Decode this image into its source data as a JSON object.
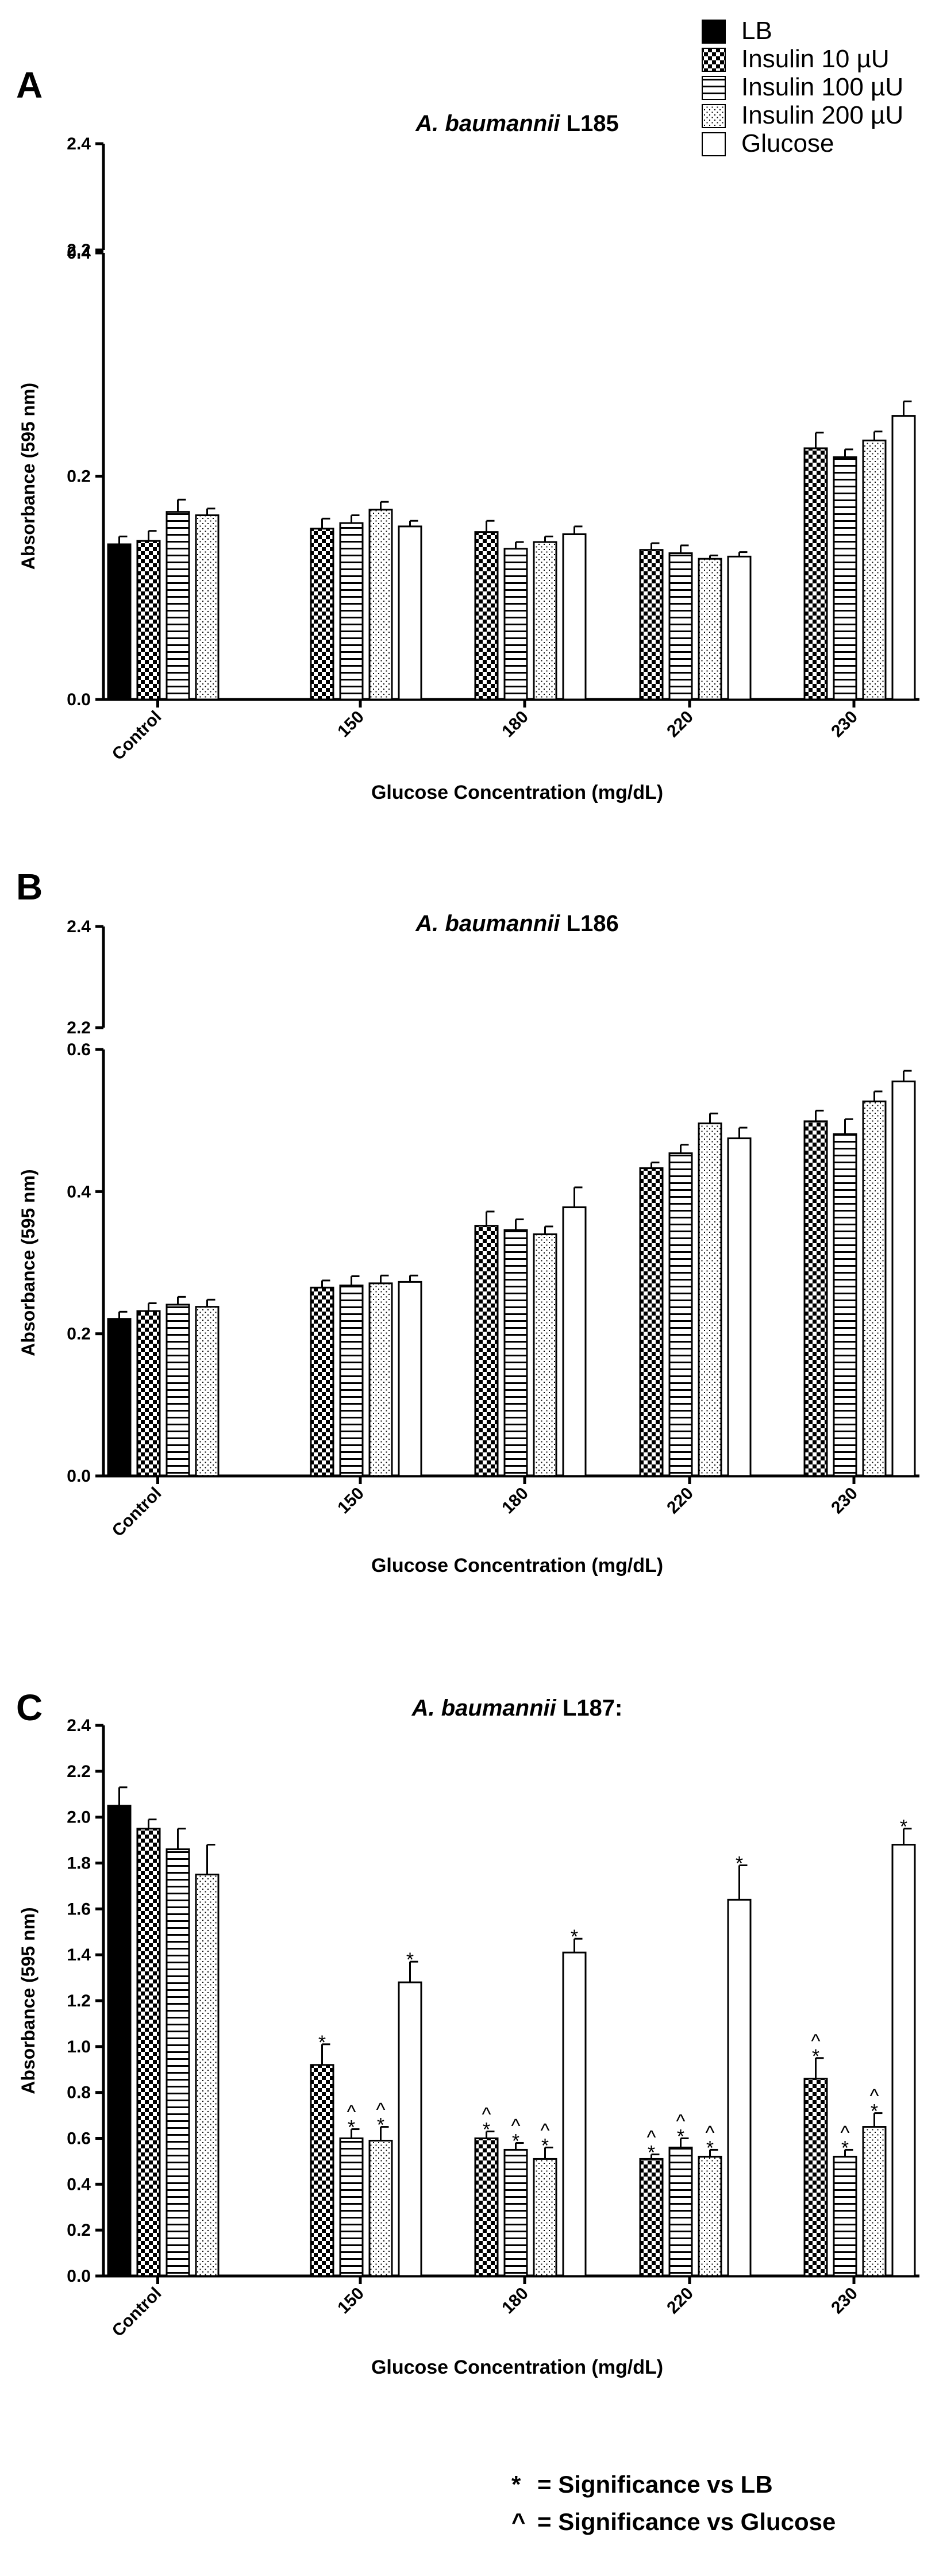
{
  "legend": [
    {
      "name": "LB",
      "pattern": "solid"
    },
    {
      "name": "Insulin 10 µU",
      "pattern": "checker"
    },
    {
      "name": "Insulin 100 µU",
      "pattern": "hlines"
    },
    {
      "name": "Insulin 200 µU",
      "pattern": "dots"
    },
    {
      "name": "Glucose",
      "pattern": "empty"
    }
  ],
  "notes": [
    {
      "symbol": "*",
      "text": "= Significance vs LB"
    },
    {
      "symbol": "^",
      "text": "= Significance vs Glucose"
    }
  ],
  "chart_data": [
    {
      "type": "bar",
      "panel": "A",
      "title_italic": "A. baumannii",
      "title_rest": " L185",
      "xlabel": "Glucose Concentration (mg/dL)",
      "ylabel": "Absorbance (595 nm)",
      "categories": [
        "Control",
        "150",
        "180",
        "220",
        "230"
      ],
      "broken_axis": true,
      "ylim": [
        0,
        0.4
      ],
      "yticks": [
        0.0,
        0.2,
        0.4
      ],
      "ytick_labels": [
        "0.0",
        "0.2",
        "0.4"
      ],
      "upper_ticks": [
        2.2,
        2.4
      ],
      "upper_tick_labels": [
        "2.2",
        "2.4"
      ],
      "series": [
        {
          "name": "LB",
          "values": [
            0.139,
            null,
            null,
            null,
            null
          ],
          "errors": [
            0.007,
            null,
            null,
            null,
            null
          ]
        },
        {
          "name": "Insulin 10 µU",
          "values": [
            0.142,
            0.153,
            0.15,
            0.134,
            0.225
          ],
          "errors": [
            0.009,
            0.009,
            0.01,
            0.006,
            0.014
          ]
        },
        {
          "name": "Insulin 100 µU",
          "values": [
            0.168,
            0.158,
            0.135,
            0.131,
            0.217
          ],
          "errors": [
            0.011,
            0.007,
            0.006,
            0.007,
            0.007
          ]
        },
        {
          "name": "Insulin 200 µU",
          "values": [
            0.165,
            0.17,
            0.141,
            0.126,
            0.232
          ],
          "errors": [
            0.006,
            0.007,
            0.005,
            0.003,
            0.008
          ]
        },
        {
          "name": "Glucose",
          "values": [
            null,
            0.155,
            0.148,
            0.128,
            0.254
          ],
          "errors": [
            null,
            0.005,
            0.007,
            0.004,
            0.013
          ]
        }
      ]
    },
    {
      "type": "bar",
      "panel": "B",
      "title_italic": "A. baumannii",
      "title_rest": " L186",
      "xlabel": "Glucose Concentration (mg/dL)",
      "ylabel": "Absorbance (595 nm)",
      "categories": [
        "Control",
        "150",
        "180",
        "220",
        "230"
      ],
      "broken_axis": true,
      "ylim": [
        0,
        0.6
      ],
      "yticks": [
        0.0,
        0.2,
        0.4,
        0.6
      ],
      "ytick_labels": [
        "0.0",
        "0.2",
        "0.4",
        "0.6"
      ],
      "upper_ticks": [
        2.2,
        2.4
      ],
      "upper_tick_labels": [
        "2.2",
        "2.4"
      ],
      "series": [
        {
          "name": "LB",
          "values": [
            0.221,
            null,
            null,
            null,
            null
          ],
          "errors": [
            0.01,
            null,
            null,
            null,
            null
          ]
        },
        {
          "name": "Insulin 10 µU",
          "values": [
            0.232,
            0.265,
            0.352,
            0.433,
            0.499
          ],
          "errors": [
            0.011,
            0.01,
            0.02,
            0.008,
            0.015
          ]
        },
        {
          "name": "Insulin 100 µU",
          "values": [
            0.241,
            0.268,
            0.346,
            0.454,
            0.481
          ],
          "errors": [
            0.011,
            0.013,
            0.015,
            0.012,
            0.021
          ]
        },
        {
          "name": "Insulin 200 µU",
          "values": [
            0.238,
            0.271,
            0.34,
            0.496,
            0.527
          ],
          "errors": [
            0.01,
            0.011,
            0.011,
            0.014,
            0.014
          ]
        },
        {
          "name": "Glucose",
          "values": [
            null,
            0.273,
            0.378,
            0.475,
            0.555
          ],
          "errors": [
            null,
            0.009,
            0.028,
            0.015,
            0.015
          ]
        }
      ]
    },
    {
      "type": "bar",
      "panel": "C",
      "title_italic": "A. baumannii",
      "title_rest": " L187:",
      "xlabel": "Glucose Concentration (mg/dL)",
      "ylabel": "Absorbance (595 nm)",
      "categories": [
        "Control",
        "150",
        "180",
        "220",
        "230"
      ],
      "broken_axis": false,
      "ylim": [
        0,
        2.4
      ],
      "yticks": [
        0.0,
        0.2,
        0.4,
        0.6,
        0.8,
        1.0,
        1.2,
        1.4,
        1.6,
        1.8,
        2.0,
        2.2,
        2.4
      ],
      "ytick_labels": [
        "0.0",
        "0.2",
        "0.4",
        "0.6",
        "0.8",
        "1.0",
        "1.2",
        "1.4",
        "1.6",
        "1.8",
        "2.0",
        "2.2",
        "2.4"
      ],
      "series": [
        {
          "name": "LB",
          "values": [
            2.05,
            null,
            null,
            null,
            null
          ],
          "errors": [
            0.08,
            null,
            null,
            null,
            null
          ],
          "marks": [
            "",
            "",
            "",
            "",
            ""
          ]
        },
        {
          "name": "Insulin 10 µU",
          "values": [
            1.95,
            0.92,
            0.6,
            0.51,
            0.86
          ],
          "errors": [
            0.04,
            0.09,
            0.03,
            0.02,
            0.09
          ],
          "marks": [
            "",
            "*",
            "*^",
            "*^",
            "*^"
          ]
        },
        {
          "name": "Insulin 100 µU",
          "values": [
            1.86,
            0.6,
            0.55,
            0.56,
            0.52
          ],
          "errors": [
            0.09,
            0.04,
            0.03,
            0.04,
            0.03
          ],
          "marks": [
            "",
            "*^",
            "*^",
            "*^",
            "*^"
          ]
        },
        {
          "name": "Insulin 200 µU",
          "values": [
            1.75,
            0.59,
            0.51,
            0.52,
            0.65
          ],
          "errors": [
            0.13,
            0.06,
            0.05,
            0.03,
            0.06
          ],
          "marks": [
            "",
            "*^",
            "*^",
            "*^",
            "*^"
          ]
        },
        {
          "name": "Glucose",
          "values": [
            null,
            1.28,
            1.41,
            1.64,
            1.88
          ],
          "errors": [
            null,
            0.09,
            0.06,
            0.15,
            0.07
          ],
          "marks": [
            "",
            "*",
            "*",
            "*",
            "*"
          ]
        }
      ]
    }
  ]
}
